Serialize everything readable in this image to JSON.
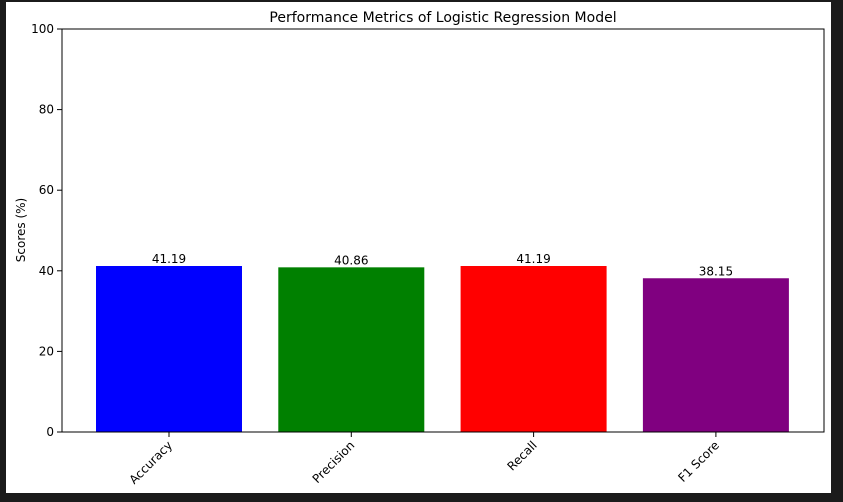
{
  "chart_data": {
    "type": "bar",
    "title": "Performance Metrics of Logistic Regression Model",
    "xlabel": "",
    "ylabel": "Scores (%)",
    "categories": [
      "Accuracy",
      "Precision",
      "Recall",
      "F1 Score"
    ],
    "values": [
      41.19,
      40.86,
      41.19,
      38.15
    ],
    "value_labels": [
      "41.19",
      "40.86",
      "41.19",
      "38.15"
    ],
    "bar_colors": [
      "#0000ff",
      "#008000",
      "#ff0000",
      "#800080"
    ],
    "ylim": [
      0,
      100
    ],
    "yticks": [
      0,
      20,
      40,
      60,
      80,
      100
    ],
    "ytick_labels": [
      "0",
      "20",
      "40",
      "60",
      "80",
      "100"
    ],
    "grid": false,
    "legend": "none"
  },
  "colors": {
    "window_background": "#1b1b1b",
    "figure_background": "#ffffff"
  }
}
